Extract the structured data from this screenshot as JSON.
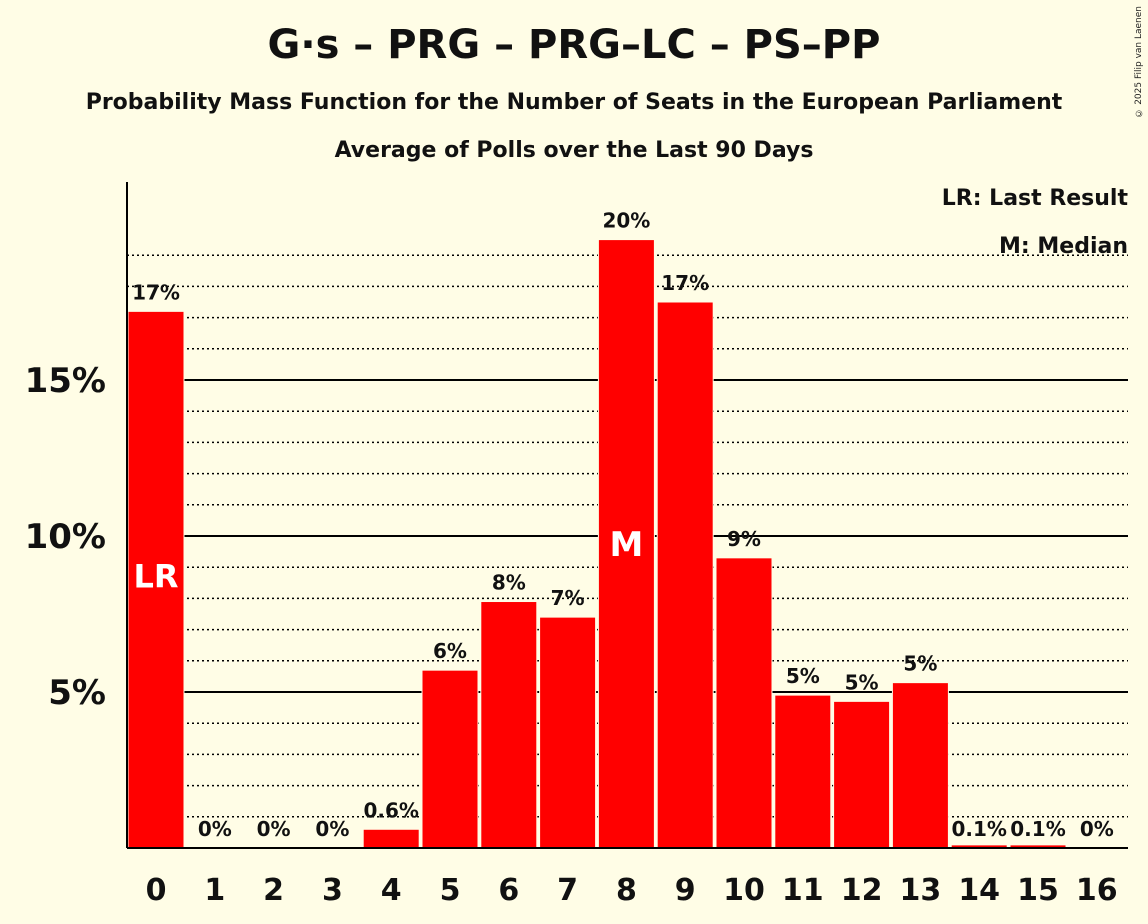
{
  "title": "G·s – PRG – PRG–LC – PS–PP",
  "subtitle": "Probability Mass Function for the Number of Seats in the European Parliament",
  "subtitle2": "Average of Polls over the Last 90 Days",
  "copyright": "© 2025 Filip van Laenen",
  "legend": {
    "lr": "LR: Last Result",
    "m": "M: Median"
  },
  "colors": {
    "bar": "#ff0000",
    "background": "#fffde6"
  },
  "chart_data": {
    "type": "bar",
    "categories": [
      "0",
      "1",
      "2",
      "3",
      "4",
      "5",
      "6",
      "7",
      "8",
      "9",
      "10",
      "11",
      "12",
      "13",
      "14",
      "15",
      "16"
    ],
    "values": [
      17.2,
      0,
      0,
      0,
      0.6,
      5.7,
      7.9,
      7.4,
      19.5,
      17.5,
      9.3,
      4.9,
      4.7,
      5.3,
      0.1,
      0.1,
      0
    ],
    "labels": [
      "17%",
      "0%",
      "0%",
      "0%",
      "0.6%",
      "6%",
      "8%",
      "7%",
      "20%",
      "17%",
      "9%",
      "5%",
      "5%",
      "5%",
      "0.1%",
      "0.1%",
      "0%"
    ],
    "yticks": [
      {
        "value": 5,
        "label": "5%"
      },
      {
        "value": 10,
        "label": "10%"
      },
      {
        "value": 15,
        "label": "15%"
      }
    ],
    "ylim": [
      0,
      21
    ],
    "last_result_index": 0,
    "last_result_marker": "LR",
    "median_index": 8,
    "median_marker": "M",
    "grid": "dotted every 1%, solid every 5%"
  }
}
